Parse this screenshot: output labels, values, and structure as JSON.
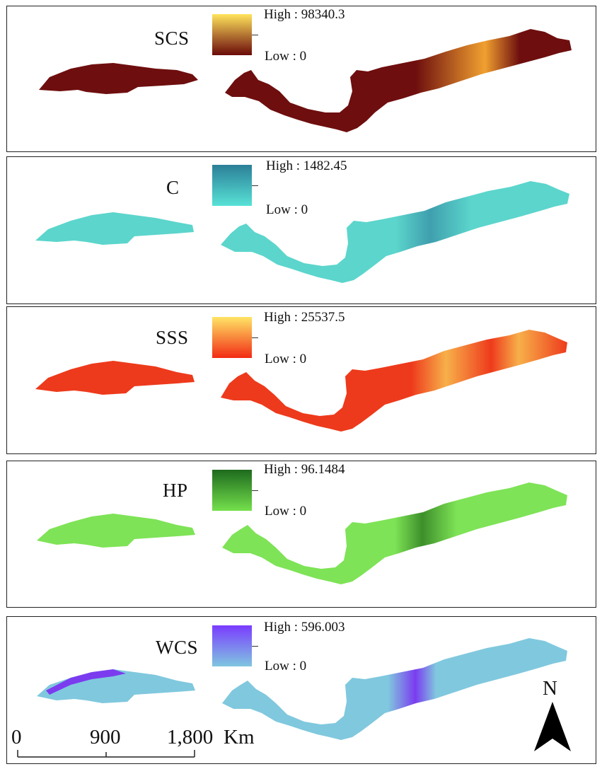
{
  "panels": [
    {
      "label": "SCS",
      "high_label": "High : 98340.3",
      "low_label": "Low : 0",
      "high_color": "#ffe45c",
      "low_color": "#6a0a0a",
      "base_color": "#6e0e0e",
      "hot_color": "#f0a030"
    },
    {
      "label": "C",
      "high_label": "High : 1482.45",
      "low_label": "Low : 0",
      "high_color": "#2b7f97",
      "low_color": "#58e2d6",
      "base_color": "#5cd6cc",
      "hot_color": "#3f9fae"
    },
    {
      "label": "SSS",
      "high_label": "High : 25537.5",
      "low_label": "Low : 0",
      "high_color": "#ffe566",
      "low_color": "#f22b14",
      "base_color": "#ee3a1c",
      "hot_color": "#f7b04a"
    },
    {
      "label": "HP",
      "high_label": "High : 96.1484",
      "low_label": "Low : 0",
      "high_color": "#1d6a1d",
      "low_color": "#74e04c",
      "base_color": "#7ee356",
      "hot_color": "#3d8f2a"
    },
    {
      "label": "WCS",
      "high_label": "High : 596.003",
      "low_label": "Low : 0",
      "high_color": "#7a3cff",
      "low_color": "#7fc6e0",
      "base_color": "#80c8de",
      "hot_color": "#7b3cf0"
    }
  ],
  "scale_bar": {
    "tick_labels": [
      "0",
      "900",
      "1,800"
    ],
    "unit": "Km"
  },
  "north_arrow": {
    "label": "N",
    "icon": "north-arrow-icon"
  }
}
